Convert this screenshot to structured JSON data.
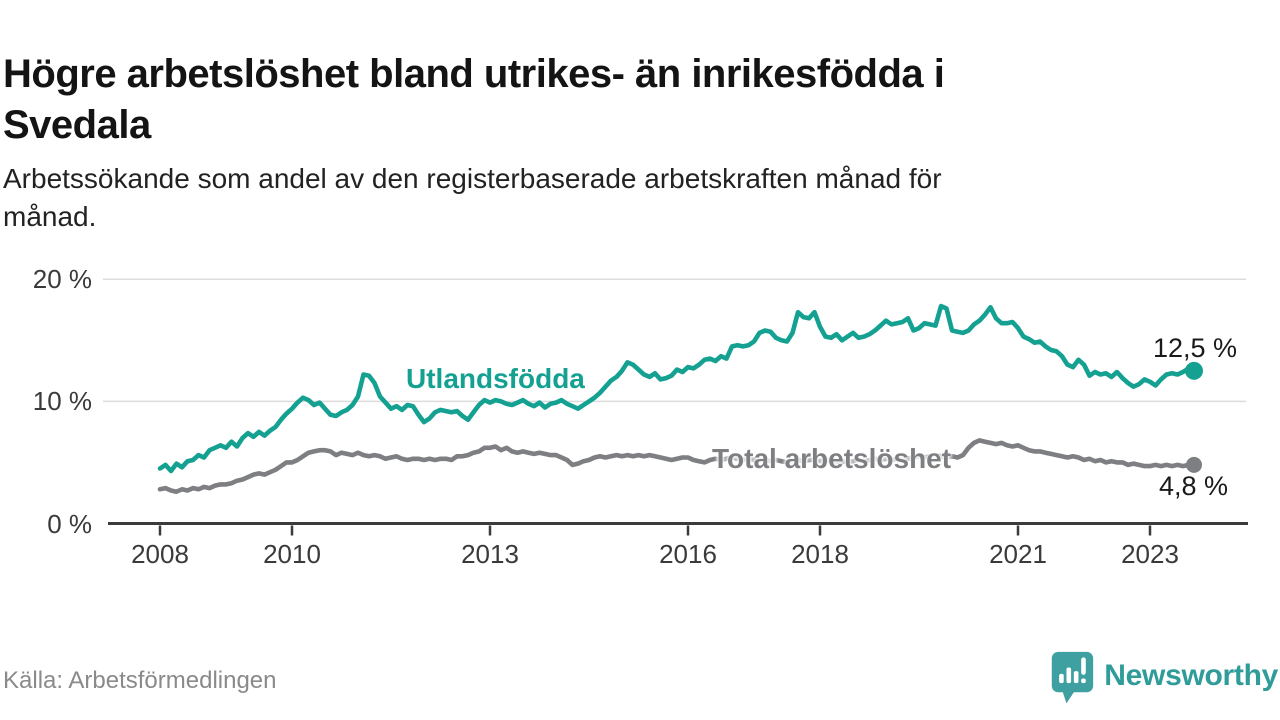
{
  "title_lines": [
    "Högre arbetslöshet bland utrikes- än inrikesfödda i",
    "Svedala"
  ],
  "subtitle_lines": [
    "Arbetssökande som andel av den registerbaserade arbetskraften månad för",
    "månad."
  ],
  "source": "Källa: Arbetsförmedlingen",
  "brand": {
    "name": "Newsworthy",
    "icon": "bar-chart-pin-icon",
    "icon_color": "#3fa0a1",
    "text_color": "#2f9c99"
  },
  "colors": {
    "foreign_born": "#14a192",
    "total": "#7e7f82",
    "grid": "#dcdcdc",
    "axis": "#3b3b3b",
    "tick_label": "#3a3a3a",
    "value_label": "#1a1a1a"
  },
  "chart_data": {
    "type": "line",
    "title": "Högre arbetslöshet bland utrikes- än inrikesfödda i Svedala",
    "subtitle": "Arbetssökande som andel av den registerbaserade arbetskraften månad för månad.",
    "x_unit": "month",
    "x_start": {
      "year": 2008,
      "month": 1
    },
    "x_end": {
      "year": 2023,
      "month": 9
    },
    "x_ticks": [
      2008,
      2010,
      2013,
      2016,
      2018,
      2021,
      2023
    ],
    "y_ticks": [
      {
        "value": 0,
        "label": "0 %"
      },
      {
        "value": 10,
        "label": "10 %"
      },
      {
        "value": 20,
        "label": "20 %"
      }
    ],
    "ylim": [
      0,
      21.5
    ],
    "grid": true,
    "legend_position": "inline-labels",
    "series": [
      {
        "name": "Utlandsfödda",
        "color": "#14a192",
        "end_label": "12,5 %",
        "end_value": 12.5,
        "values": [
          4.5,
          4.8,
          4.3,
          4.9,
          4.6,
          5.1,
          5.2,
          5.6,
          5.4,
          6.0,
          6.2,
          6.4,
          6.2,
          6.7,
          6.3,
          7.0,
          7.4,
          7.1,
          7.5,
          7.2,
          7.6,
          7.9,
          8.5,
          9.0,
          9.4,
          9.9,
          10.3,
          10.1,
          9.7,
          9.9,
          9.4,
          8.9,
          8.8,
          9.1,
          9.3,
          9.7,
          10.4,
          12.2,
          12.1,
          11.5,
          10.4,
          9.9,
          9.4,
          9.6,
          9.3,
          9.7,
          9.6,
          8.9,
          8.3,
          8.6,
          9.1,
          9.3,
          9.2,
          9.1,
          9.2,
          8.8,
          8.5,
          9.1,
          9.7,
          10.1,
          9.9,
          10.1,
          10.0,
          9.8,
          9.7,
          9.9,
          10.1,
          9.8,
          9.6,
          9.9,
          9.5,
          9.8,
          9.9,
          10.1,
          9.8,
          9.6,
          9.4,
          9.7,
          10.0,
          10.3,
          10.7,
          11.2,
          11.7,
          12.0,
          12.5,
          13.2,
          13.0,
          12.6,
          12.2,
          12.0,
          12.3,
          11.8,
          11.9,
          12.1,
          12.6,
          12.4,
          12.8,
          12.7,
          13.0,
          13.4,
          13.5,
          13.3,
          13.7,
          13.5,
          14.5,
          14.6,
          14.5,
          14.6,
          14.9,
          15.6,
          15.8,
          15.7,
          15.2,
          15.0,
          14.9,
          15.6,
          17.3,
          16.9,
          16.8,
          17.3,
          16.1,
          15.3,
          15.2,
          15.5,
          15.0,
          15.3,
          15.6,
          15.2,
          15.3,
          15.5,
          15.8,
          16.2,
          16.6,
          16.3,
          16.4,
          16.5,
          16.8,
          15.8,
          16.0,
          16.4,
          16.3,
          16.2,
          17.8,
          17.6,
          15.8,
          15.7,
          15.6,
          15.8,
          16.3,
          16.6,
          17.1,
          17.7,
          16.8,
          16.4,
          16.4,
          16.5,
          16.0,
          15.3,
          15.1,
          14.8,
          14.9,
          14.5,
          14.2,
          14.1,
          13.7,
          13.0,
          12.8,
          13.4,
          13.0,
          12.1,
          12.4,
          12.2,
          12.3,
          12.0,
          12.4,
          11.9,
          11.5,
          11.2,
          11.4,
          11.8,
          11.6,
          11.3,
          11.8,
          12.2,
          12.3,
          12.2,
          12.4,
          12.7,
          12.5
        ]
      },
      {
        "name": "Total arbetslöshet",
        "color": "#7e7f82",
        "end_label": "4,8 %",
        "end_value": 4.8,
        "values": [
          2.8,
          2.9,
          2.7,
          2.6,
          2.8,
          2.7,
          2.9,
          2.8,
          3.0,
          2.9,
          3.1,
          3.2,
          3.2,
          3.3,
          3.5,
          3.6,
          3.8,
          4.0,
          4.1,
          4.0,
          4.2,
          4.4,
          4.7,
          5.0,
          5.0,
          5.2,
          5.5,
          5.8,
          5.9,
          6.0,
          6.0,
          5.9,
          5.6,
          5.8,
          5.7,
          5.6,
          5.8,
          5.6,
          5.5,
          5.6,
          5.5,
          5.3,
          5.4,
          5.5,
          5.3,
          5.2,
          5.3,
          5.3,
          5.2,
          5.3,
          5.2,
          5.3,
          5.3,
          5.2,
          5.5,
          5.5,
          5.6,
          5.8,
          5.9,
          6.2,
          6.2,
          6.3,
          6.0,
          6.2,
          5.9,
          5.8,
          5.9,
          5.8,
          5.7,
          5.8,
          5.7,
          5.6,
          5.6,
          5.4,
          5.2,
          4.8,
          4.9,
          5.1,
          5.2,
          5.4,
          5.5,
          5.4,
          5.5,
          5.6,
          5.5,
          5.6,
          5.5,
          5.6,
          5.5,
          5.6,
          5.5,
          5.4,
          5.3,
          5.2,
          5.3,
          5.4,
          5.4,
          5.2,
          5.1,
          5.0,
          5.2,
          5.3,
          5.2,
          5.3,
          5.4,
          5.3,
          5.2,
          5.3,
          5.2,
          5.3,
          5.2,
          5.1,
          5.2,
          5.1,
          5.0,
          5.1,
          5.2,
          5.1,
          5.2,
          5.2,
          5.1,
          5.2,
          5.1,
          5.0,
          5.1,
          5.0,
          5.1,
          5.2,
          5.1,
          5.2,
          5.3,
          5.2,
          5.3,
          5.2,
          5.3,
          5.4,
          5.3,
          5.4,
          5.5,
          5.4,
          5.5,
          5.6,
          5.5,
          5.4,
          5.5,
          5.4,
          5.6,
          6.2,
          6.6,
          6.8,
          6.7,
          6.6,
          6.5,
          6.6,
          6.4,
          6.3,
          6.4,
          6.2,
          6.0,
          5.9,
          5.9,
          5.8,
          5.7,
          5.6,
          5.5,
          5.4,
          5.5,
          5.4,
          5.2,
          5.3,
          5.1,
          5.2,
          5.0,
          5.1,
          5.0,
          5.0,
          4.8,
          4.9,
          4.8,
          4.7,
          4.7,
          4.8,
          4.7,
          4.8,
          4.7,
          4.8,
          4.7,
          4.8,
          4.8
        ]
      }
    ]
  }
}
